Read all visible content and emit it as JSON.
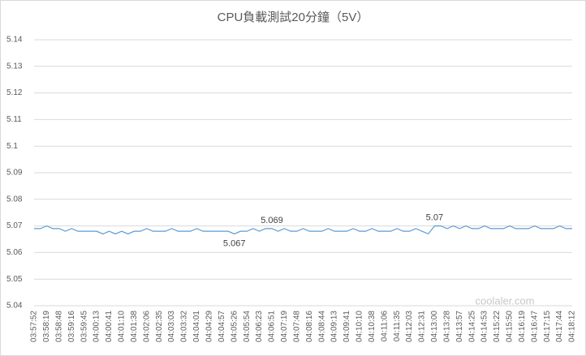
{
  "chart_data": {
    "type": "line",
    "title": "CPU負載測試20分鐘（5V）",
    "categories": [
      "03:57:52",
      null,
      "03:58:19",
      null,
      "03:58:48",
      null,
      "03:59:16",
      null,
      "03:59:45",
      null,
      "04:00:13",
      null,
      "04:00:41",
      null,
      "04:01:10",
      null,
      "04:01:38",
      null,
      "04:02:06",
      null,
      "04:02:35",
      null,
      "04:03:03",
      null,
      "04:03:32",
      null,
      "04:04:01",
      null,
      "04:04:29",
      null,
      "04:04:57",
      null,
      "04:05:26",
      null,
      "04:05:54",
      null,
      "04:06:23",
      null,
      "04:06:51",
      null,
      "04:07:19",
      null,
      "04:07:48",
      null,
      "04:08:16",
      null,
      "04:08:44",
      null,
      "04:09:13",
      null,
      "04:09:41",
      null,
      "04:10:10",
      null,
      "04:10:38",
      null,
      "04:11:06",
      null,
      "04:11:35",
      null,
      "04:12:03",
      null,
      "04:12:31",
      null,
      "04:13:00",
      null,
      "04:13:28",
      null,
      "04:13:57",
      null,
      "04:14:25",
      null,
      "04:14:53",
      null,
      "04:15:22",
      null,
      "04:15:50",
      null,
      "04:16:19",
      null,
      "04:16:47",
      null,
      "04:17:15",
      null,
      "04:17:44",
      null,
      "04:18:12"
    ],
    "values": [
      5.069,
      5.069,
      5.07,
      5.069,
      5.069,
      5.068,
      5.069,
      5.068,
      5.068,
      5.068,
      5.068,
      5.067,
      5.068,
      5.067,
      5.068,
      5.067,
      5.068,
      5.068,
      5.069,
      5.068,
      5.068,
      5.068,
      5.069,
      5.068,
      5.068,
      5.068,
      5.069,
      5.068,
      5.068,
      5.068,
      5.068,
      5.068,
      5.067,
      5.068,
      5.068,
      5.069,
      5.068,
      5.069,
      5.069,
      5.068,
      5.069,
      5.068,
      5.068,
      5.069,
      5.068,
      5.068,
      5.068,
      5.069,
      5.068,
      5.068,
      5.068,
      5.069,
      5.068,
      5.068,
      5.069,
      5.068,
      5.068,
      5.068,
      5.069,
      5.068,
      5.068,
      5.069,
      5.068,
      5.067,
      5.07,
      5.07,
      5.069,
      5.07,
      5.069,
      5.07,
      5.069,
      5.069,
      5.07,
      5.069,
      5.069,
      5.069,
      5.07,
      5.069,
      5.069,
      5.069,
      5.07,
      5.069,
      5.069,
      5.069,
      5.07,
      5.069,
      5.069
    ],
    "value_labels": [
      null,
      null,
      null,
      null,
      null,
      null,
      null,
      null,
      null,
      null,
      null,
      null,
      null,
      null,
      null,
      null,
      null,
      null,
      null,
      null,
      null,
      null,
      null,
      null,
      null,
      null,
      null,
      null,
      null,
      null,
      null,
      null,
      "5.067",
      null,
      null,
      null,
      null,
      null,
      "5.069",
      null,
      null,
      null,
      null,
      null,
      null,
      null,
      null,
      null,
      null,
      null,
      null,
      null,
      null,
      null,
      null,
      null,
      null,
      null,
      null,
      null,
      null,
      null,
      null,
      null,
      "5.07",
      null,
      null,
      null,
      null,
      null,
      null,
      null,
      null,
      null,
      null,
      null,
      null,
      null,
      null,
      null,
      null,
      null,
      null,
      null,
      null,
      null,
      null
    ],
    "color": "#5b9bd5",
    "ylim": [
      5.04,
      5.14
    ],
    "yticks": [
      5.04,
      5.05,
      5.06,
      5.07,
      5.08,
      5.09,
      5.1,
      5.11,
      5.12,
      5.13,
      5.14
    ],
    "grid": true,
    "watermark": "coolaler.com"
  }
}
